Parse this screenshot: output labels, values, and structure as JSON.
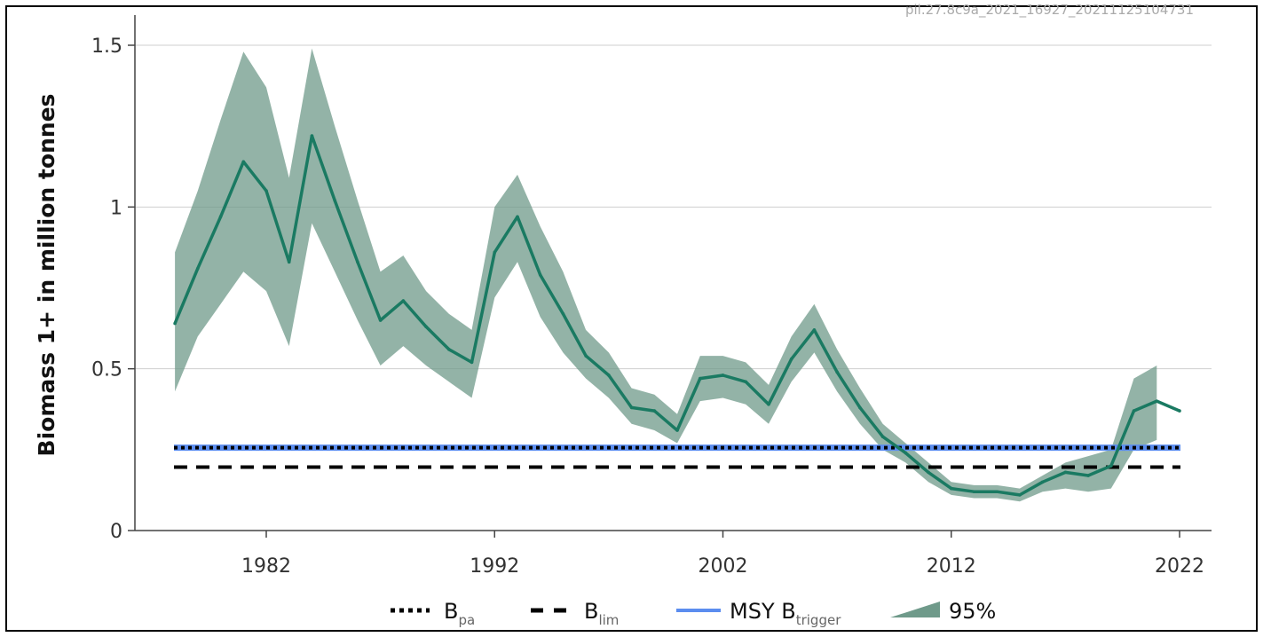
{
  "watermark": "pil.27.8c9a_2021_16927_20211125104731",
  "chart_data": {
    "type": "line",
    "ylabel": "Biomass 1+ in million tonnes",
    "xlabel": "",
    "xlim": [
      1978,
      1923
    ],
    "ylim": [
      0,
      1.5
    ],
    "xticks": [
      "1982",
      "1992",
      "2002",
      "2012",
      "2022"
    ],
    "xtick_values": [
      1982,
      1992,
      2002,
      2012,
      2022
    ],
    "yticks": [
      "0",
      "0.5",
      "1",
      "1.5"
    ],
    "ytick_values": [
      0,
      0.5,
      1,
      1.5
    ],
    "grid": "horizontal",
    "legend_position": "bottom",
    "years": [
      1978,
      1979,
      1980,
      1981,
      1982,
      1983,
      1984,
      1985,
      1986,
      1987,
      1988,
      1989,
      1990,
      1991,
      1992,
      1993,
      1994,
      1995,
      1996,
      1997,
      1998,
      1999,
      2000,
      2001,
      2002,
      2003,
      2004,
      2005,
      2006,
      2007,
      2008,
      2009,
      2010,
      2011,
      2012,
      2013,
      2014,
      2015,
      2016,
      2017,
      2018,
      2019,
      2020,
      2021,
      2022
    ],
    "series": [
      {
        "name": "",
        "kind": "estimate",
        "color": "#1a7a62",
        "values": [
          0.64,
          0.81,
          0.97,
          1.14,
          1.05,
          0.83,
          1.22,
          1.02,
          0.83,
          0.65,
          0.71,
          0.63,
          0.56,
          0.52,
          0.86,
          0.97,
          0.79,
          0.67,
          0.54,
          0.48,
          0.38,
          0.37,
          0.31,
          0.47,
          0.48,
          0.46,
          0.39,
          0.53,
          0.62,
          0.49,
          0.38,
          0.29,
          0.24,
          0.18,
          0.13,
          0.12,
          0.12,
          0.11,
          0.15,
          0.18,
          0.17,
          0.2,
          0.37,
          0.4,
          0.37
        ]
      }
    ],
    "band": {
      "name": "95%",
      "color": "#6f9a8a",
      "years": [
        1978,
        1979,
        1980,
        1981,
        1982,
        1983,
        1984,
        1985,
        1986,
        1987,
        1988,
        1989,
        1990,
        1991,
        1992,
        1993,
        1994,
        1995,
        1996,
        1997,
        1998,
        1999,
        2000,
        2001,
        2002,
        2003,
        2004,
        2005,
        2006,
        2007,
        2008,
        2009,
        2010,
        2011,
        2012,
        2013,
        2014,
        2015,
        2016,
        2017,
        2018,
        2019,
        2020,
        2021
      ],
      "upper": [
        0.86,
        1.05,
        1.27,
        1.48,
        1.37,
        1.09,
        1.49,
        1.25,
        1.02,
        0.8,
        0.85,
        0.74,
        0.67,
        0.62,
        1.0,
        1.1,
        0.94,
        0.8,
        0.62,
        0.55,
        0.44,
        0.42,
        0.36,
        0.54,
        0.54,
        0.52,
        0.45,
        0.6,
        0.7,
        0.56,
        0.44,
        0.33,
        0.27,
        0.21,
        0.15,
        0.14,
        0.14,
        0.13,
        0.17,
        0.21,
        0.23,
        0.25,
        0.47,
        0.51
      ],
      "lower": [
        0.43,
        0.6,
        0.7,
        0.8,
        0.74,
        0.57,
        0.95,
        0.8,
        0.65,
        0.51,
        0.57,
        0.51,
        0.46,
        0.41,
        0.72,
        0.83,
        0.66,
        0.55,
        0.47,
        0.41,
        0.33,
        0.31,
        0.27,
        0.4,
        0.41,
        0.39,
        0.33,
        0.46,
        0.55,
        0.43,
        0.33,
        0.25,
        0.21,
        0.15,
        0.11,
        0.1,
        0.1,
        0.09,
        0.12,
        0.13,
        0.12,
        0.13,
        0.25,
        0.28
      ]
    },
    "reference_lines": [
      {
        "name": "MSY Btrigger",
        "label_main": "MSY B",
        "label_sub": "trigger",
        "value": 0.256,
        "style": "solid",
        "color": "#5b8def"
      },
      {
        "name": "Bpa",
        "label_main": "B",
        "label_sub": "pa",
        "value": 0.256,
        "style": "dotted",
        "color": "#000000"
      },
      {
        "name": "Blim",
        "label_main": "B",
        "label_sub": "lim",
        "value": 0.196,
        "style": "dashed",
        "color": "#000000"
      }
    ],
    "legend": [
      {
        "key": "bpa",
        "label_main": "B",
        "label_sub": "pa"
      },
      {
        "key": "blim",
        "label_main": "B",
        "label_sub": "lim"
      },
      {
        "key": "msy",
        "label_main": "MSY B",
        "label_sub": "trigger"
      },
      {
        "key": "band",
        "label_main": "95%",
        "label_sub": ""
      }
    ]
  }
}
